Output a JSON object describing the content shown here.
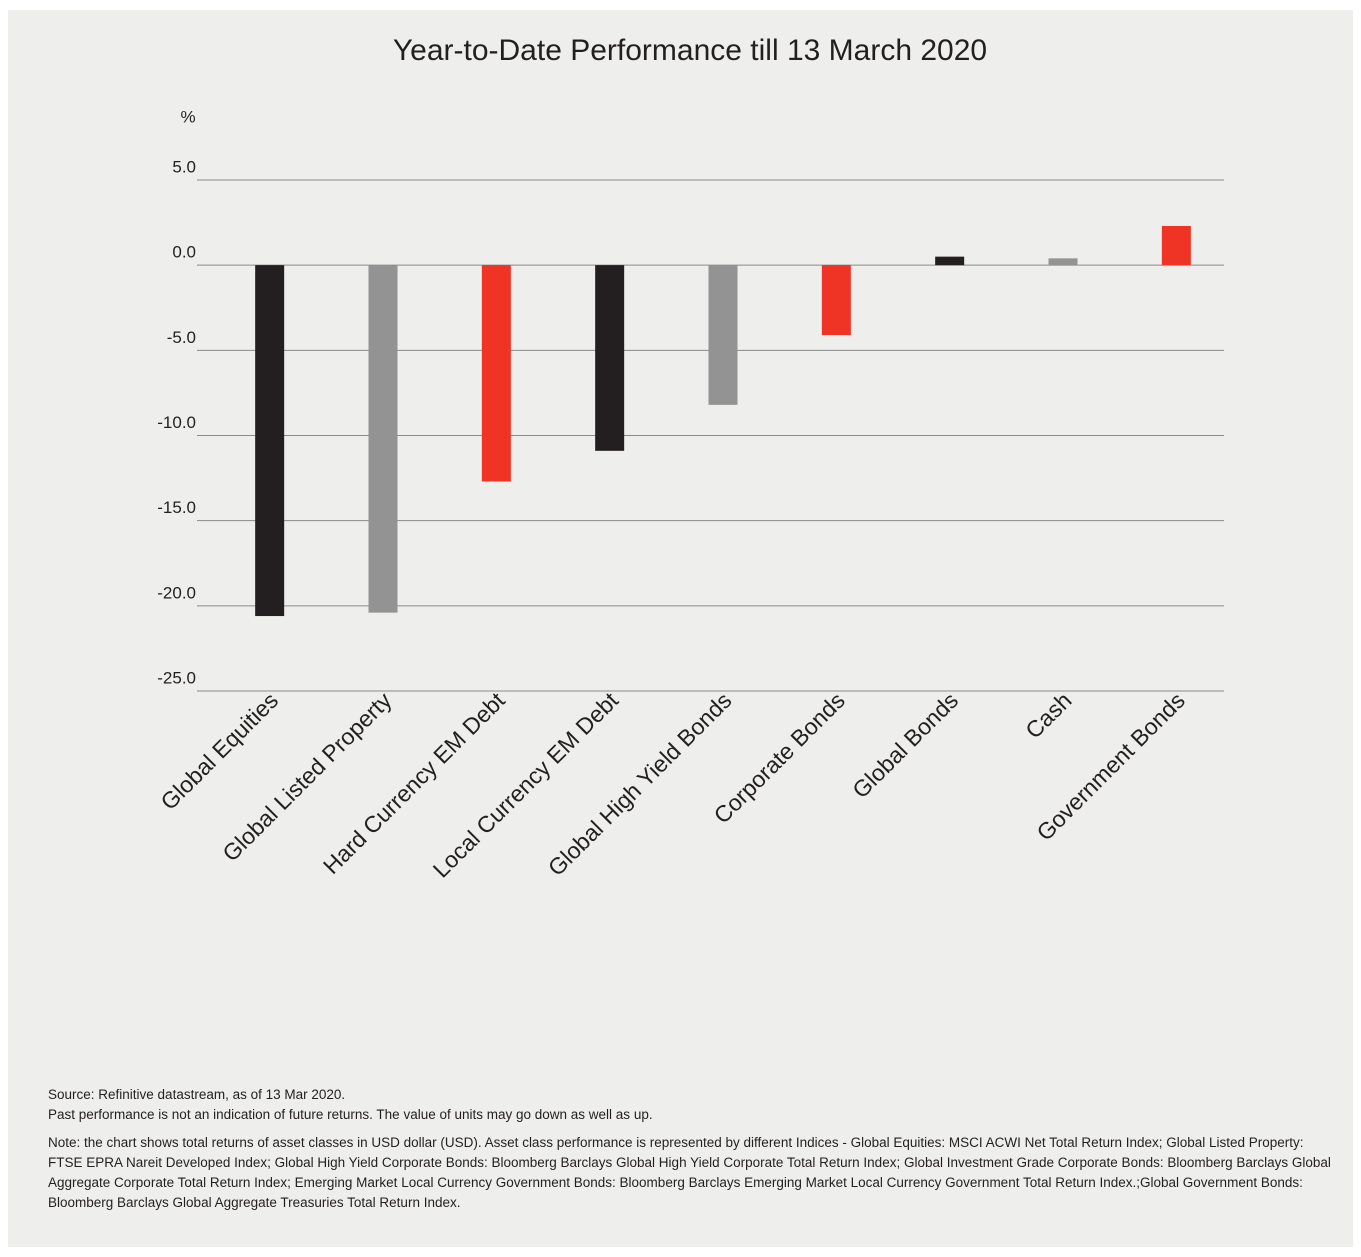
{
  "chart_data": {
    "type": "bar",
    "title": "Year-to-Date Performance till 13 March 2020",
    "y_label": "%",
    "categories": [
      "Global Equities",
      "Global Listed Property",
      "Hard Currency EM Debt",
      "Local Currency EM Debt",
      "Global High Yield Bonds",
      "Corporate Bonds",
      "Global Bonds",
      "Cash",
      "Government Bonds"
    ],
    "values": [
      -20.6,
      -20.4,
      -12.7,
      -10.9,
      -8.2,
      -4.1,
      0.5,
      0.4,
      2.3
    ],
    "colors": [
      "#231f20",
      "#939393",
      "#ef3324",
      "#231f20",
      "#939393",
      "#ef3324",
      "#231f20",
      "#939393",
      "#ef3324"
    ],
    "ylim": [
      -25,
      5
    ],
    "yticks": [
      {
        "value": 5,
        "label": "5.0"
      },
      {
        "value": 0,
        "label": "0.0"
      },
      {
        "value": -5,
        "label": "-5.0"
      },
      {
        "value": -10,
        "label": "-10.0"
      },
      {
        "value": -15,
        "label": "-15.0"
      },
      {
        "value": -20,
        "label": "-20.0"
      },
      {
        "value": -25,
        "label": "-25.0"
      }
    ],
    "grid": true,
    "source": "Source: Refinitive datastream, as of 13 Mar 2020.",
    "disclaimer": "Past performance is not an indication of future returns. The value of units may go down as well as up.",
    "note": "Note: the chart shows total returns of asset classes in USD dollar (USD). Asset class performance is represented by different Indices - Global Equities: MSCI ACWI Net Total Return Index; Global Listed Property: FTSE EPRA Nareit Developed Index; Global High Yield Corporate Bonds: Bloomberg Barclays Global High Yield Corporate Total Return Index; Global Investment Grade Corporate Bonds: Bloomberg Barclays Global Aggregate Corporate Total Return Index; Emerging Market Local Currency Government Bonds: Bloomberg Barclays Emerging Market Local Currency Government Total Return Index.;Global Government Bonds: Bloomberg Barclays Global Aggregate Treasuries Total Return Index."
  }
}
